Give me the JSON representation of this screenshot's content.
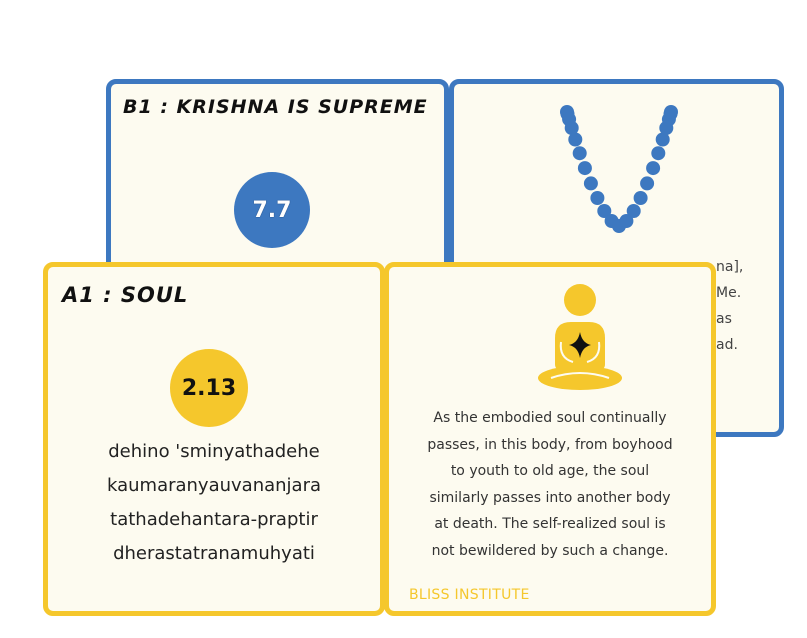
{
  "cards": {
    "b1": {
      "title": "B1 : KRISHNA IS SUPREME",
      "badge": "7.7",
      "partial_lines": [
        "na],",
        "Me.",
        "as",
        "ad."
      ]
    },
    "a1": {
      "title": "A1 : SOUL",
      "badge": "2.13",
      "verse_lines": [
        "dehino 'sminyathadehe",
        "kaumaranyauvananjara",
        "tathadehantara-praptir",
        "dherastatranamuhyati"
      ],
      "translation_lines": [
        "As the embodied soul continually",
        "passes, in this body, from boyhood",
        "to youth to old age, the soul",
        "similarly passes into another body",
        "at death. The self-realized soul is",
        "not bewildered by such a change."
      ],
      "footer": "BLISS INSTITUTE"
    }
  },
  "colors": {
    "blue": "#3d78c0",
    "yellow": "#f5c72c",
    "card_background": "#fdfbf0"
  },
  "icons": {
    "b1_back": "bead-necklace-icon",
    "a1_back": "meditating-person-icon"
  }
}
